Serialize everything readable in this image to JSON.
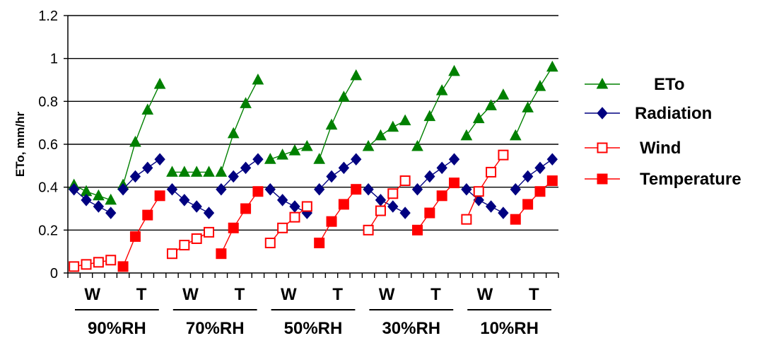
{
  "chart_data": {
    "type": "line",
    "title": "",
    "xlabel": "",
    "ylabel": "ETo, mm/hr",
    "ylim": [
      0,
      1.2
    ],
    "yticks": [
      "0",
      "0.2",
      "0.4",
      "0.6",
      "0.8",
      "1",
      "1.2"
    ],
    "grid": true,
    "legend_position": "right",
    "groups": [
      "90%RH",
      "70%RH",
      "50%RH",
      "30%RH",
      "10%RH"
    ],
    "subgroups": [
      "W",
      "T"
    ],
    "points_per_subgroup": 4,
    "series": [
      {
        "name": "ETo",
        "color": "#008000",
        "marker": "filled-triangle",
        "values": [
          [
            0.41,
            0.38,
            0.36,
            0.34,
            0.41,
            0.61,
            0.76,
            0.88
          ],
          [
            0.47,
            0.47,
            0.47,
            0.47,
            0.47,
            0.65,
            0.79,
            0.9
          ],
          [
            0.53,
            0.55,
            0.57,
            0.59,
            0.53,
            0.69,
            0.82,
            0.92
          ],
          [
            0.59,
            0.64,
            0.68,
            0.71,
            0.59,
            0.73,
            0.85,
            0.94
          ],
          [
            0.64,
            0.72,
            0.78,
            0.83,
            0.64,
            0.77,
            0.87,
            0.96
          ]
        ]
      },
      {
        "name": "Radiation",
        "color": "#000080",
        "marker": "filled-diamond",
        "values": [
          [
            0.39,
            0.34,
            0.31,
            0.28,
            0.39,
            0.45,
            0.49,
            0.53
          ],
          [
            0.39,
            0.34,
            0.31,
            0.28,
            0.39,
            0.45,
            0.49,
            0.53
          ],
          [
            0.39,
            0.34,
            0.31,
            0.28,
            0.39,
            0.45,
            0.49,
            0.53
          ],
          [
            0.39,
            0.34,
            0.31,
            0.28,
            0.39,
            0.45,
            0.49,
            0.53
          ],
          [
            0.39,
            0.34,
            0.31,
            0.28,
            0.39,
            0.45,
            0.49,
            0.53
          ]
        ]
      },
      {
        "name": "Wind",
        "color": "#ff0000",
        "marker": "open-square",
        "segment": "W",
        "values": [
          [
            0.03,
            0.04,
            0.05,
            0.06
          ],
          [
            0.09,
            0.13,
            0.16,
            0.19
          ],
          [
            0.14,
            0.21,
            0.26,
            0.31
          ],
          [
            0.2,
            0.29,
            0.37,
            0.43
          ],
          [
            0.25,
            0.38,
            0.47,
            0.55
          ]
        ]
      },
      {
        "name": "Temperature",
        "color": "#ff0000",
        "marker": "filled-square",
        "segment": "T",
        "values": [
          [
            0.03,
            0.17,
            0.27,
            0.36
          ],
          [
            0.09,
            0.21,
            0.3,
            0.38
          ],
          [
            0.14,
            0.24,
            0.32,
            0.39
          ],
          [
            0.2,
            0.28,
            0.36,
            0.42
          ],
          [
            0.25,
            0.32,
            0.38,
            0.43
          ]
        ]
      }
    ]
  }
}
